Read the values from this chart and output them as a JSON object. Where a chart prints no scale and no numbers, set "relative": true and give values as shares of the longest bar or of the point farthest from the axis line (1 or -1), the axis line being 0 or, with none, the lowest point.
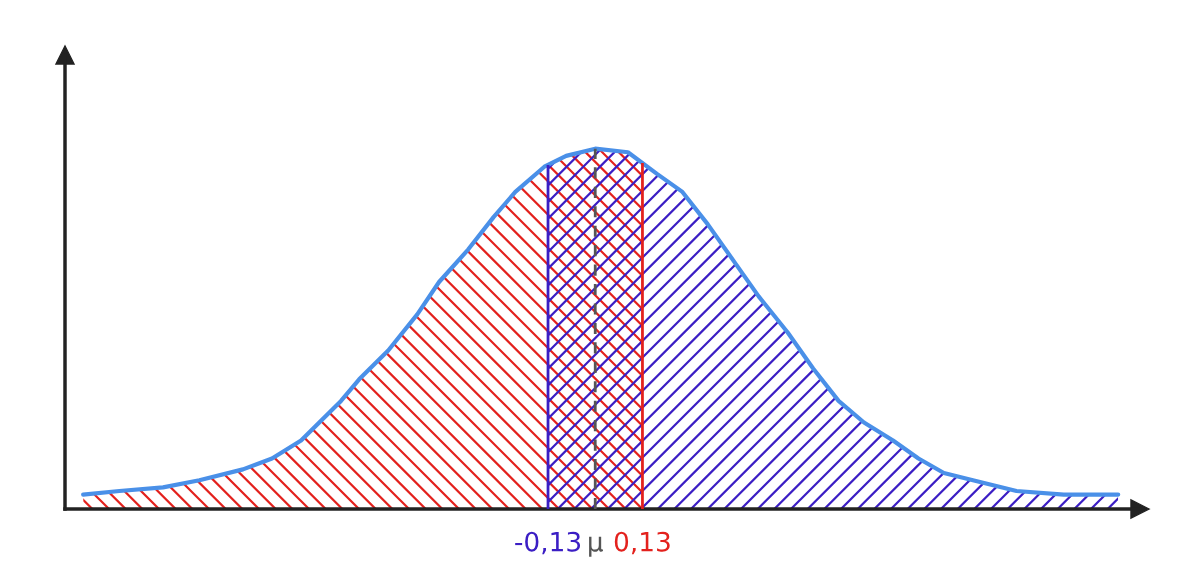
{
  "chart_data": {
    "type": "line",
    "relative": true,
    "x": [
      -1.41,
      -1.31,
      -1.19,
      -1.09,
      -0.97,
      -0.89,
      -0.81,
      -0.7,
      -0.65,
      -0.57,
      -0.49,
      -0.43,
      -0.35,
      -0.28,
      -0.22,
      -0.14,
      -0.08,
      0,
      0.09,
      0.17,
      0.24,
      0.31,
      0.38,
      0.45,
      0.53,
      0.6,
      0.67,
      0.74,
      0.82,
      0.89,
      0.96,
      1.04,
      1.16,
      1.29,
      1.44
    ],
    "series": [
      {
        "color": "#4a90e8",
        "line_style": "solid",
        "values": [
          0.04,
          0.05,
          0.06,
          0.08,
          0.11,
          0.14,
          0.19,
          0.3,
          0.36,
          0.44,
          0.54,
          0.63,
          0.72,
          0.81,
          0.88,
          0.95,
          0.98,
          1,
          0.99,
          0.93,
          0.88,
          0.79,
          0.69,
          0.59,
          0.49,
          0.39,
          0.3,
          0.24,
          0.19,
          0.14,
          0.1,
          0.08,
          0.05,
          0.04,
          0.04
        ]
      }
    ],
    "xlim": [
      -1.46,
      1.5
    ],
    "xticks": [
      {
        "value": -0.13,
        "label": "-0,13"
      },
      {
        "value": 0,
        "label": "μ"
      },
      {
        "value": 0.13,
        "label": "0,13"
      }
    ],
    "ref_lines": [
      {
        "axis": "x",
        "value": -0.13,
        "color": "#3b1ec4",
        "line_style": "solid"
      },
      {
        "axis": "x",
        "value": 0,
        "color": "#555555",
        "line_style": "dashed"
      },
      {
        "axis": "x",
        "value": 0.13,
        "color": "#e3211d",
        "line_style": "solid"
      }
    ],
    "bands": [
      {
        "axis": "x",
        "from": -1.41,
        "to": 0.13,
        "color": "#e3211d"
      },
      {
        "axis": "x",
        "from": -0.13,
        "to": 1.44,
        "color": "#3b1ec4"
      }
    ],
    "grid": false,
    "legend": false
  }
}
